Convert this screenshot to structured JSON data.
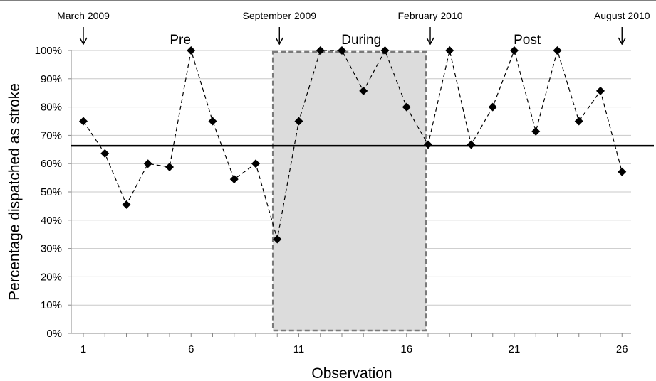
{
  "chart_data": {
    "type": "line",
    "title": "",
    "xlabel": "Observation",
    "ylabel": "Percentage  dispatched as stroke",
    "xlim": [
      1,
      26
    ],
    "ylim": [
      0,
      100
    ],
    "x_ticks": [
      1,
      6,
      11,
      16,
      21,
      26
    ],
    "y_ticks": [
      "0%",
      "10%",
      "20%",
      "30%",
      "40%",
      "50%",
      "60%",
      "70%",
      "80%",
      "90%",
      "100%"
    ],
    "grid": "horizontal",
    "series": [
      {
        "x": [
          1,
          2,
          3,
          4,
          5,
          6,
          7,
          8,
          9,
          10,
          11,
          12,
          13,
          14,
          15,
          16,
          17,
          18,
          19,
          20,
          21,
          22,
          23,
          24,
          25,
          26
        ],
        "values": [
          75,
          63.6,
          45.5,
          60,
          58.8,
          100,
          75,
          54.5,
          60,
          33.3,
          75,
          100,
          100,
          85.7,
          100,
          80,
          66.7,
          100,
          66.7,
          80,
          100,
          71.4,
          100,
          75,
          85.7,
          57.1
        ],
        "color": "#000000",
        "style": "dashed",
        "marker": "diamond"
      }
    ],
    "reference_line": {
      "value": 66.3,
      "color": "#000000"
    },
    "shaded_region": {
      "x_start": 9.8,
      "x_end": 16.9,
      "y_start": 1,
      "y_end": 99.5,
      "fill": "#dcdcdc",
      "border": "#7a7a7a"
    },
    "phase_labels": [
      {
        "text": "Pre",
        "x": 5.5
      },
      {
        "text": "During",
        "x": 13.9
      },
      {
        "text": "Post",
        "x": 21.6
      }
    ],
    "date_markers": [
      {
        "text": "March 2009",
        "x": 1
      },
      {
        "text": "September 2009",
        "x": 10.1
      },
      {
        "text": "February 2010",
        "x": 17.1
      },
      {
        "text": "August 2010",
        "x": 26
      }
    ]
  }
}
